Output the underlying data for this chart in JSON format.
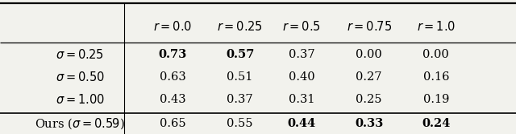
{
  "col_headers": [
    "",
    "r = 0.0",
    "r = 0.25",
    "r = 0.5",
    "r = 0.75",
    "r = 1.0"
  ],
  "rows": [
    {
      "label": "σ = 0.25",
      "values": [
        "0.73",
        "0.57",
        "0.37",
        "0.00",
        "0.00"
      ],
      "bold": [
        true,
        true,
        false,
        false,
        false
      ]
    },
    {
      "label": "σ = 0.50",
      "values": [
        "0.63",
        "0.51",
        "0.40",
        "0.27",
        "0.16"
      ],
      "bold": [
        false,
        false,
        false,
        false,
        false
      ]
    },
    {
      "label": "σ = 1.00",
      "values": [
        "0.43",
        "0.37",
        "0.31",
        "0.25",
        "0.19"
      ],
      "bold": [
        false,
        false,
        false,
        false,
        false
      ]
    }
  ],
  "ours_row": {
    "label": "Ours (σ = 0.59)",
    "values": [
      "0.65",
      "0.55",
      "0.44",
      "0.33",
      "0.24"
    ],
    "bold": [
      false,
      false,
      true,
      true,
      true
    ]
  },
  "background_color": "#f2f2ed",
  "fig_width": 6.4,
  "fig_height": 1.67,
  "dpi": 100
}
